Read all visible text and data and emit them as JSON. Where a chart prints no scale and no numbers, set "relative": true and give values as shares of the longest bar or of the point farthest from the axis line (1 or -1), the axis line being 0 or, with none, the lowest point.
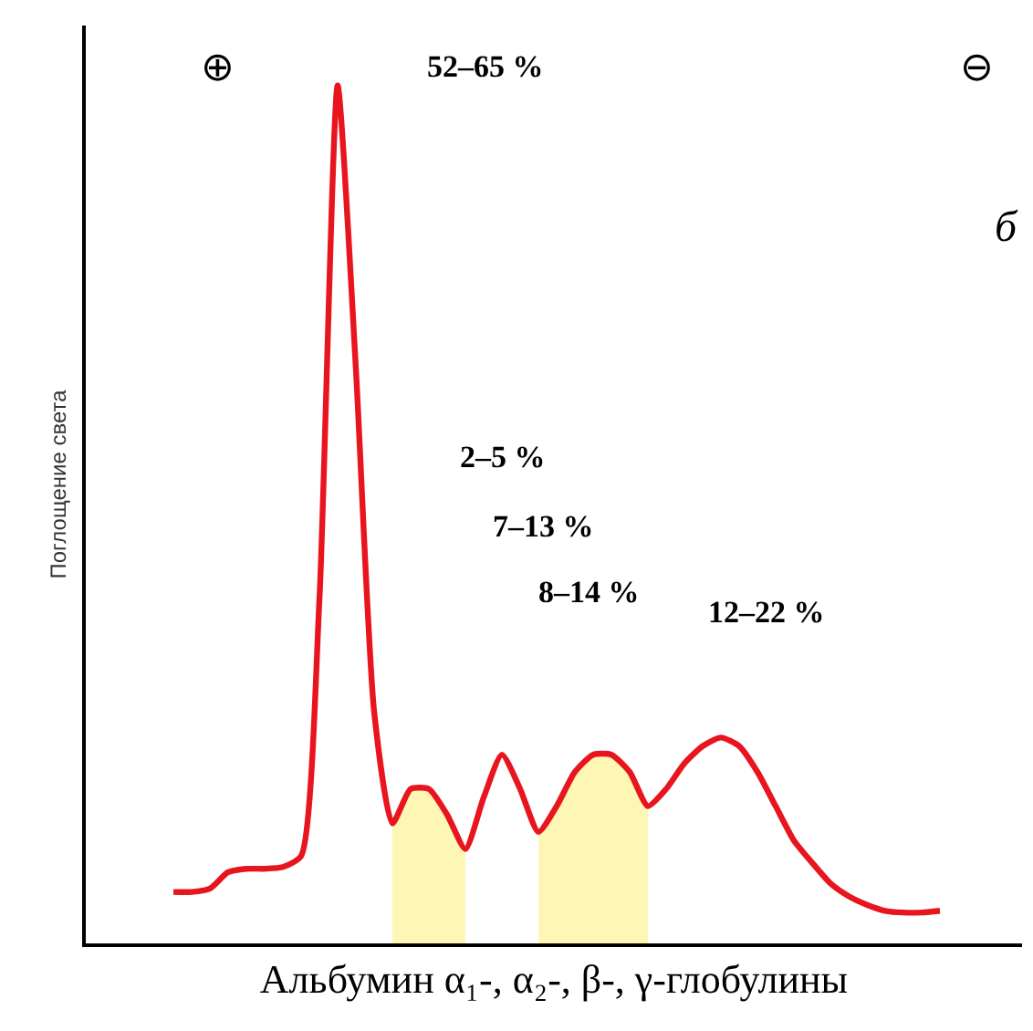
{
  "chart_data": {
    "type": "line",
    "relative": true,
    "xlabel": "Альбумин α₁-, α₂-, β-, γ-глобулины",
    "ylabel": "Поглощение света",
    "categories": [
      null,
      null,
      null,
      null,
      null,
      null,
      null,
      null,
      null,
      null,
      null,
      null,
      null,
      null,
      null,
      null,
      null,
      null,
      null,
      null,
      null,
      null,
      null,
      null,
      null,
      null,
      null,
      null,
      null,
      null,
      null,
      null,
      null,
      null,
      null,
      null,
      null,
      null,
      null,
      null,
      null,
      null,
      null
    ],
    "series": [
      {
        "type": "area",
        "color": "#fdf6b4",
        "values": [
          null,
          null,
          null,
          null,
          null,
          null,
          null,
          null,
          null,
          null,
          null,
          null,
          0.14,
          0.18,
          0.18,
          0.15,
          0.11,
          null,
          null,
          null,
          null,
          null,
          null,
          null,
          null,
          null,
          null,
          null,
          null,
          null,
          null,
          null,
          null,
          null,
          null,
          null,
          null,
          null,
          null,
          null,
          null,
          null,
          null
        ]
      },
      {
        "type": "area",
        "color": "#fdf6b4",
        "values": [
          null,
          null,
          null,
          null,
          null,
          null,
          null,
          null,
          null,
          null,
          null,
          null,
          null,
          null,
          null,
          null,
          null,
          null,
          null,
          null,
          0.13,
          0.16,
          0.2,
          0.22,
          0.22,
          0.2,
          0.16,
          null,
          null,
          null,
          null,
          null,
          null,
          null,
          null,
          null,
          null,
          null,
          null,
          null,
          null,
          null,
          null
        ]
      },
      {
        "color": "#e8141e",
        "values": [
          0.06,
          0.06,
          0.064,
          0.083,
          0.087,
          0.087,
          0.089,
          0.102,
          0.4,
          1,
          0.67,
          0.27,
          0.14,
          0.18,
          0.18,
          0.15,
          0.11,
          0.17,
          0.22,
          0.18,
          0.13,
          0.16,
          0.2,
          0.22,
          0.22,
          0.2,
          0.16,
          0.18,
          0.21,
          0.23,
          0.24,
          0.23,
          0.2,
          0.16,
          0.12,
          0.094,
          0.07,
          0.055,
          0.045,
          0.038,
          0.036,
          0.036,
          0.038
        ]
      }
    ],
    "annotations": [
      "⊕",
      "52–65 %",
      "⊖",
      "б",
      "2–5 %",
      "7–13 %",
      "8–14 %",
      "12–22 %"
    ]
  }
}
